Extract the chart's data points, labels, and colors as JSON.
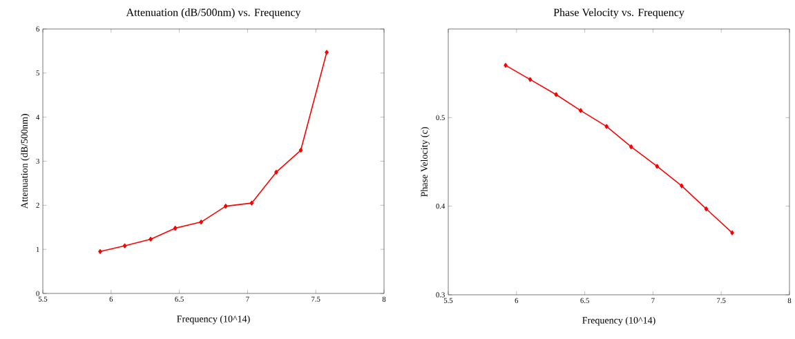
{
  "chart_data": [
    {
      "type": "line",
      "title": "Attenuation (dB/500nm) vs. Frequency",
      "xlabel": "Frequency (10^14)",
      "ylabel": "Attenuation (dB/500nm)",
      "x": [
        5.92,
        6.1,
        6.29,
        6.47,
        6.66,
        6.84,
        7.03,
        7.21,
        7.39,
        7.58
      ],
      "series": [
        {
          "color": "#ff0000",
          "values": [
            0.95,
            1.08,
            1.23,
            1.48,
            1.62,
            1.98,
            2.05,
            2.75,
            3.25,
            5.47
          ]
        }
      ],
      "xlim": [
        5.5,
        8
      ],
      "xticks": [
        5.5,
        6,
        6.5,
        7,
        7.5,
        8
      ],
      "ylim": [
        0,
        6
      ],
      "yticks": [
        0,
        1,
        2,
        3,
        4,
        5,
        6
      ],
      "grid": false,
      "marker": "diamond",
      "line_style": "solid"
    },
    {
      "type": "line",
      "title": "Phase Velocity vs. Frequency",
      "xlabel": "Frequency (10^14)",
      "ylabel": "Phase Velocity (c)",
      "x": [
        5.92,
        6.1,
        6.29,
        6.47,
        6.66,
        6.84,
        7.03,
        7.21,
        7.39,
        7.58
      ],
      "series": [
        {
          "color": "#ff0000",
          "values": [
            0.559,
            0.543,
            0.526,
            0.508,
            0.49,
            0.467,
            0.445,
            0.423,
            0.397,
            0.37
          ]
        }
      ],
      "xlim": [
        5.5,
        8
      ],
      "xticks": [
        5.5,
        6,
        6.5,
        7,
        7.5,
        8
      ],
      "ylim": [
        0.3,
        0.6
      ],
      "yticks": [
        0.3,
        0.4,
        0.5
      ],
      "grid": false,
      "marker": "diamond",
      "line_style": "solid"
    }
  ]
}
